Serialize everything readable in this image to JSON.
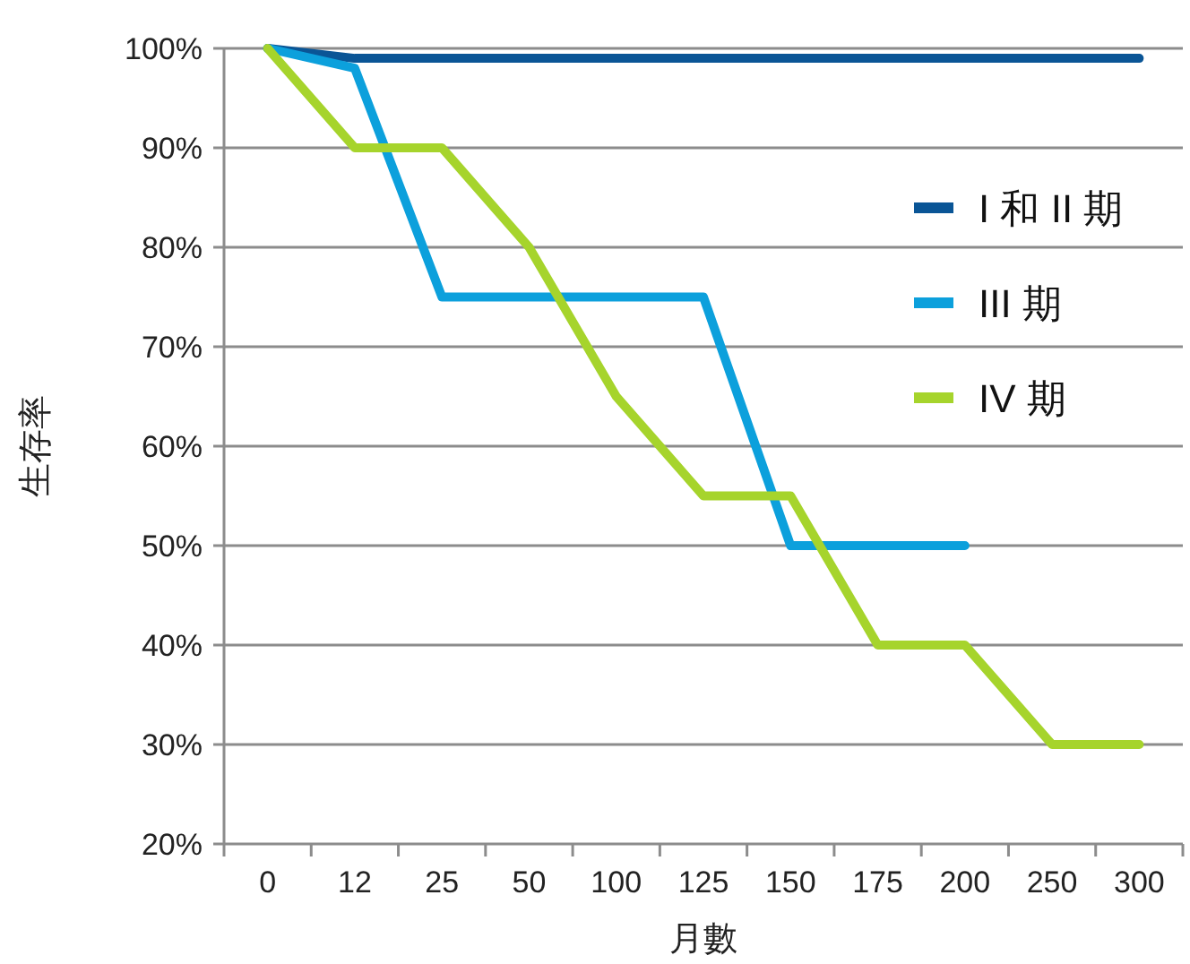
{
  "chart_data": {
    "type": "line",
    "xlabel": "月數",
    "ylabel": "生存率",
    "categories": [
      "0",
      "12",
      "25",
      "50",
      "100",
      "125",
      "150",
      "175",
      "200",
      "250",
      "300"
    ],
    "series": [
      {
        "name": "I 和 II 期",
        "color": "#0a5596",
        "values": [
          100,
          99,
          99,
          99,
          99,
          99,
          99,
          99,
          99,
          99,
          99
        ]
      },
      {
        "name": "III 期",
        "color": "#0ca0dc",
        "values": [
          100,
          98,
          75,
          75,
          75,
          75,
          50,
          50,
          50,
          null,
          null
        ]
      },
      {
        "name": "IV 期",
        "color": "#a6d42c",
        "values": [
          100,
          90,
          90,
          80,
          65,
          55,
          55,
          40,
          40,
          30,
          30
        ]
      }
    ],
    "ylim": [
      20,
      100
    ],
    "yticks": [
      {
        "value": 20,
        "label": "20%"
      },
      {
        "value": 30,
        "label": "30%"
      },
      {
        "value": 40,
        "label": "40%"
      },
      {
        "value": 50,
        "label": "50%"
      },
      {
        "value": 60,
        "label": "60%"
      },
      {
        "value": 70,
        "label": "70%"
      },
      {
        "value": 80,
        "label": "80%"
      },
      {
        "value": 90,
        "label": "90%"
      },
      {
        "value": 100,
        "label": "100%"
      }
    ],
    "grid": "y",
    "legend": "right",
    "marker": "none",
    "line_style": "solid"
  }
}
